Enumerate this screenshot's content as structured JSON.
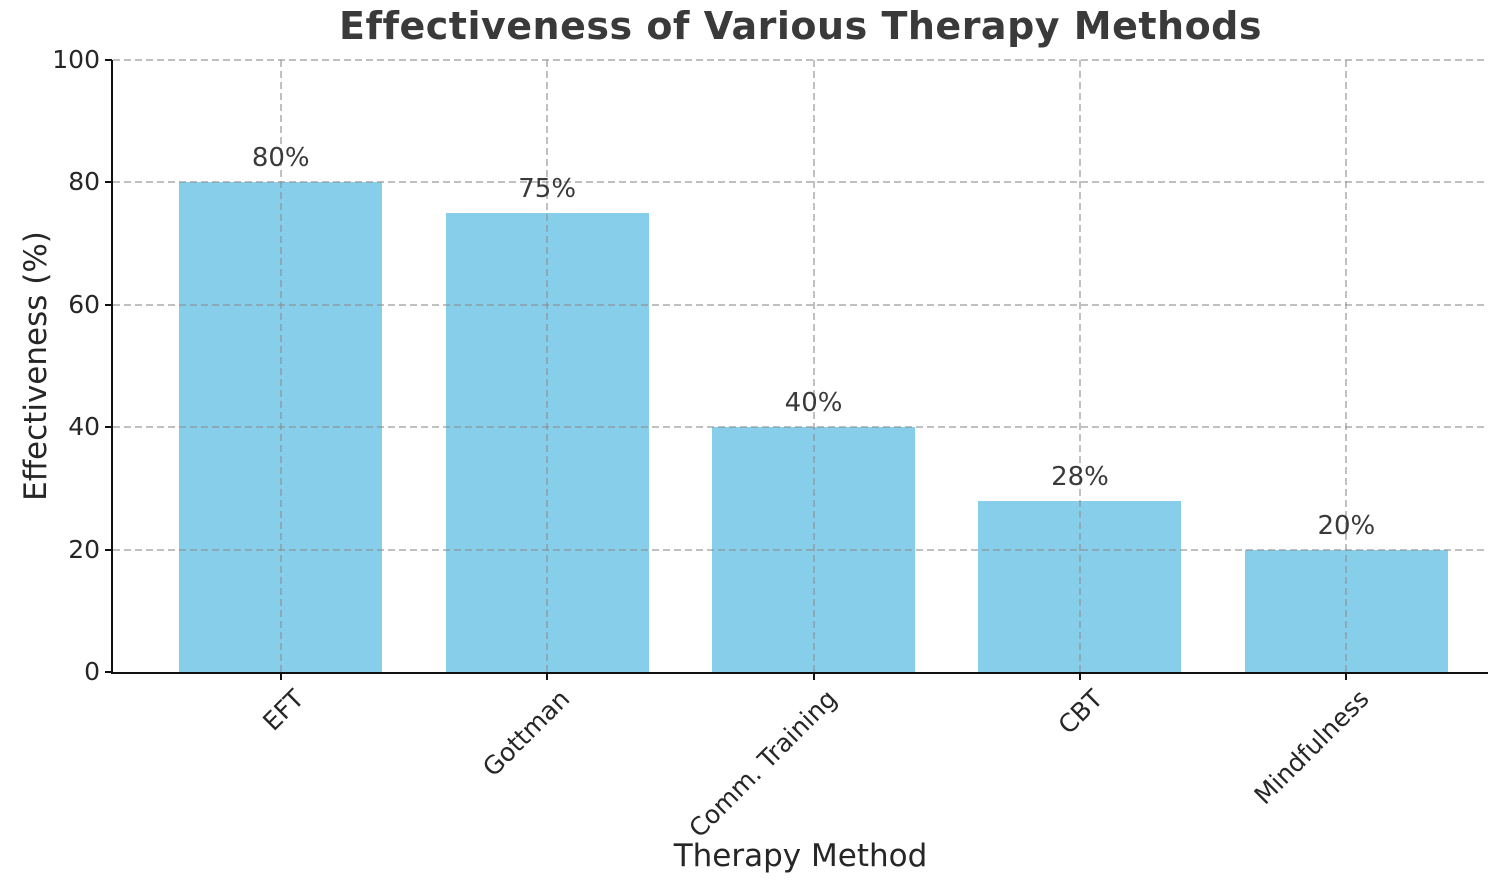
{
  "chart_data": {
    "type": "bar",
    "title": "Effectiveness of Various Therapy Methods",
    "xlabel": "Therapy Method",
    "ylabel": "Effectiveness (%)",
    "categories": [
      "EFT",
      "Gottman",
      "Comm. Training",
      "CBT",
      "Mindfulness"
    ],
    "values": [
      80,
      75,
      40,
      28,
      20
    ],
    "value_labels": [
      "80%",
      "75%",
      "40%",
      "28%",
      "20%"
    ],
    "ylim": [
      0,
      100
    ],
    "yticks": [
      0,
      20,
      40,
      60,
      80,
      100
    ],
    "legend": "none",
    "grid": "dashed, horizontal and vertical, drawn over bars",
    "colors": {
      "bar": "#87CEEB",
      "title_text": "#3a3a3a",
      "axis_text": "#262626",
      "value_label_text": "#3a3a3a",
      "spine": "#111111",
      "grid": "rgba(140,140,140,0.55)",
      "background": "#ffffff"
    }
  }
}
